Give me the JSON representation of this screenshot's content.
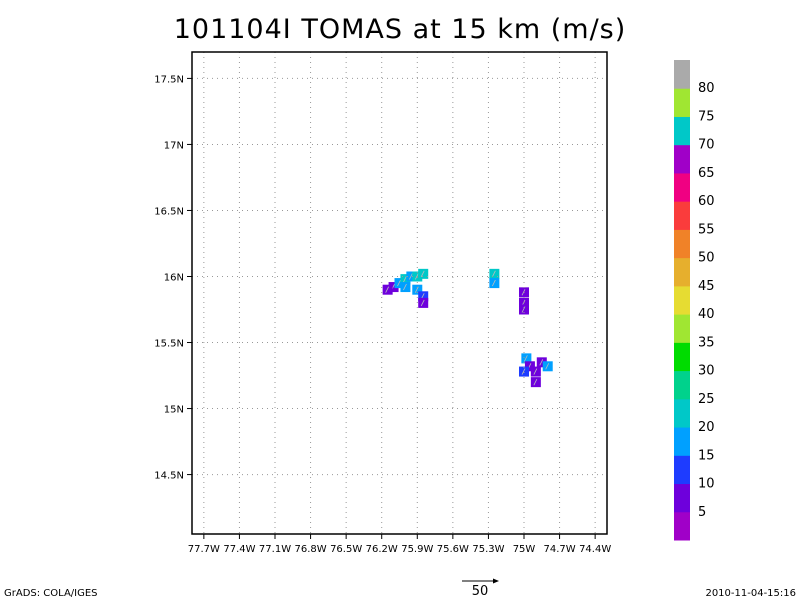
{
  "title": "101104I TOMAS at 15 km (m/s)",
  "footer": {
    "credit": "GrADS: COLA/IGES",
    "timestamp": "2010-11-04-15:16",
    "reference_vector_label": "50"
  },
  "chart_data": {
    "type": "heatmap",
    "title": "101104I TOMAS at 15 km (m/s)",
    "x_ticks": [
      "77.7W",
      "77.4W",
      "77.1W",
      "76.8W",
      "76.5W",
      "76.2W",
      "75.9W",
      "75.6W",
      "75.3W",
      "75W",
      "74.7W",
      "74.4W"
    ],
    "y_ticks": [
      "14.5N",
      "15N",
      "15.5N",
      "16N",
      "16.5N",
      "17N",
      "17.5N"
    ],
    "xlim": [
      -77.8,
      -74.3
    ],
    "ylim": [
      14.05,
      17.7
    ],
    "grid": true,
    "colorbar": {
      "labels": [
        "5",
        "10",
        "15",
        "20",
        "25",
        "30",
        "35",
        "40",
        "45",
        "50",
        "55",
        "60",
        "65",
        "70",
        "75",
        "80"
      ],
      "colors": [
        "#a000c8",
        "#6e00dc",
        "#1e3cff",
        "#00a0ff",
        "#00c8c8",
        "#00d28c",
        "#00dc00",
        "#a0e632",
        "#e6dc32",
        "#e6af2d",
        "#f08228",
        "#fa3c3c",
        "#f00082",
        "#a000c8",
        "#00c8c8",
        "#a0e632",
        "#aaaaaa"
      ]
    },
    "wind_cells": [
      {
        "lon": -76.1,
        "lat": 15.92,
        "speed": 5
      },
      {
        "lon": -76.05,
        "lat": 15.95,
        "speed": 15
      },
      {
        "lon": -76.0,
        "lat": 15.98,
        "speed": 20
      },
      {
        "lon": -75.95,
        "lat": 16.0,
        "speed": 15
      },
      {
        "lon": -75.9,
        "lat": 16.0,
        "speed": 20
      },
      {
        "lon": -75.85,
        "lat": 16.02,
        "speed": 20
      },
      {
        "lon": -76.0,
        "lat": 15.92,
        "speed": 15
      },
      {
        "lon": -75.9,
        "lat": 15.9,
        "speed": 15
      },
      {
        "lon": -75.85,
        "lat": 15.85,
        "speed": 10
      },
      {
        "lon": -75.85,
        "lat": 15.8,
        "speed": 5
      },
      {
        "lon": -76.15,
        "lat": 15.9,
        "speed": 5
      },
      {
        "lon": -75.25,
        "lat": 16.02,
        "speed": 20
      },
      {
        "lon": -75.25,
        "lat": 15.95,
        "speed": 15
      },
      {
        "lon": -75.0,
        "lat": 15.88,
        "speed": 5
      },
      {
        "lon": -75.0,
        "lat": 15.8,
        "speed": 5
      },
      {
        "lon": -75.0,
        "lat": 15.75,
        "speed": 5
      },
      {
        "lon": -74.98,
        "lat": 15.38,
        "speed": 15
      },
      {
        "lon": -74.95,
        "lat": 15.32,
        "speed": 5
      },
      {
        "lon": -74.9,
        "lat": 15.28,
        "speed": 5
      },
      {
        "lon": -74.85,
        "lat": 15.35,
        "speed": 5
      },
      {
        "lon": -74.8,
        "lat": 15.32,
        "speed": 15
      },
      {
        "lon": -75.0,
        "lat": 15.28,
        "speed": 10
      },
      {
        "lon": -74.9,
        "lat": 15.2,
        "speed": 5
      }
    ]
  }
}
